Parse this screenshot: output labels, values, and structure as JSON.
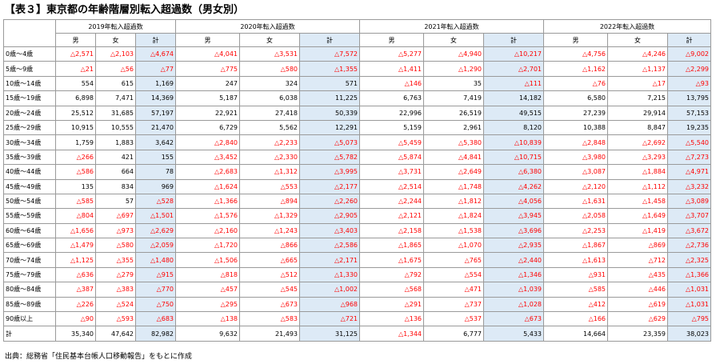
{
  "title": "【表３】東京都の年齢階層別転入超過数（男女別）",
  "years": [
    "2019年転入超過数",
    "2020年転入超過数",
    "2021年転入超過数",
    "2022年転入超過数"
  ],
  "sub_headers": [
    "男",
    "女",
    "計"
  ],
  "rows": [
    {
      "label": "0歳～4歳",
      "values": [
        "△2,571",
        "△2,103",
        "△4,674",
        "△4,041",
        "△3,531",
        "△7,572",
        "△5,277",
        "△4,940",
        "△10,217",
        "△4,756",
        "△4,246",
        "△9,002"
      ]
    },
    {
      "label": "5歳～9歳",
      "values": [
        "△21",
        "△56",
        "△77",
        "△775",
        "△580",
        "△1,355",
        "△1,411",
        "△1,290",
        "△2,701",
        "△1,162",
        "△1,137",
        "△2,299"
      ]
    },
    {
      "label": "10歳～14歳",
      "values": [
        "554",
        "615",
        "1,169",
        "247",
        "324",
        "571",
        "△146",
        "35",
        "△111",
        "△76",
        "△17",
        "△93"
      ]
    },
    {
      "label": "15歳～19歳",
      "values": [
        "6,898",
        "7,471",
        "14,369",
        "5,187",
        "6,038",
        "11,225",
        "6,763",
        "7,419",
        "14,182",
        "6,580",
        "7,215",
        "13,795"
      ]
    },
    {
      "label": "20歳～24歳",
      "values": [
        "25,512",
        "31,685",
        "57,197",
        "22,921",
        "27,418",
        "50,339",
        "22,996",
        "26,519",
        "49,515",
        "27,239",
        "29,914",
        "57,153"
      ]
    },
    {
      "label": "25歳～29歳",
      "values": [
        "10,915",
        "10,555",
        "21,470",
        "6,729",
        "5,562",
        "12,291",
        "5,159",
        "2,961",
        "8,120",
        "10,388",
        "8,847",
        "19,235"
      ]
    },
    {
      "label": "30歳～34歳",
      "values": [
        "1,759",
        "1,883",
        "3,642",
        "△2,840",
        "△2,233",
        "△5,073",
        "△5,459",
        "△5,380",
        "△10,839",
        "△2,848",
        "△2,692",
        "△5,540"
      ]
    },
    {
      "label": "35歳～39歳",
      "values": [
        "△266",
        "421",
        "155",
        "△3,452",
        "△2,330",
        "△5,782",
        "△5,874",
        "△4,841",
        "△10,715",
        "△3,980",
        "△3,293",
        "△7,273"
      ]
    },
    {
      "label": "40歳～44歳",
      "values": [
        "△586",
        "664",
        "78",
        "△2,683",
        "△1,312",
        "△3,995",
        "△3,731",
        "△2,649",
        "△6,380",
        "△3,087",
        "△1,884",
        "△4,971"
      ]
    },
    {
      "label": "45歳～49歳",
      "values": [
        "135",
        "834",
        "969",
        "△1,624",
        "△553",
        "△2,177",
        "△2,514",
        "△1,748",
        "△4,262",
        "△2,120",
        "△1,112",
        "△3,232"
      ]
    },
    {
      "label": "50歳～54歳",
      "values": [
        "△585",
        "57",
        "△528",
        "△1,366",
        "△894",
        "△2,260",
        "△2,244",
        "△1,812",
        "△4,056",
        "△1,631",
        "△1,458",
        "△3,089"
      ]
    },
    {
      "label": "55歳～59歳",
      "values": [
        "△804",
        "△697",
        "△1,501",
        "△1,576",
        "△1,329",
        "△2,905",
        "△2,121",
        "△1,824",
        "△3,945",
        "△2,058",
        "△1,649",
        "△3,707"
      ]
    },
    {
      "label": "60歳～64歳",
      "values": [
        "△1,656",
        "△973",
        "△2,629",
        "△2,160",
        "△1,243",
        "△3,403",
        "△2,158",
        "△1,538",
        "△3,696",
        "△2,253",
        "△1,419",
        "△3,672"
      ]
    },
    {
      "label": "65歳～69歳",
      "values": [
        "△1,479",
        "△580",
        "△2,059",
        "△1,720",
        "△866",
        "△2,586",
        "△1,865",
        "△1,070",
        "△2,935",
        "△1,867",
        "△869",
        "△2,736"
      ]
    },
    {
      "label": "70歳～74歳",
      "values": [
        "△1,125",
        "△355",
        "△1,480",
        "△1,506",
        "△665",
        "△2,171",
        "△1,675",
        "△765",
        "△2,440",
        "△1,613",
        "△712",
        "△2,325"
      ]
    },
    {
      "label": "75歳～79歳",
      "values": [
        "△636",
        "△279",
        "△915",
        "△818",
        "△512",
        "△1,330",
        "△792",
        "△554",
        "△1,346",
        "△931",
        "△435",
        "△1,366"
      ]
    },
    {
      "label": "80歳～84歳",
      "values": [
        "△387",
        "△383",
        "△770",
        "△457",
        "△545",
        "△1,002",
        "△568",
        "△471",
        "△1,039",
        "△585",
        "△446",
        "△1,031"
      ]
    },
    {
      "label": "85歳～89歳",
      "values": [
        "△226",
        "△524",
        "△750",
        "△295",
        "△673",
        "△968",
        "△291",
        "△737",
        "△1,028",
        "△412",
        "△619",
        "△1,031"
      ]
    },
    {
      "label": "90歳以上",
      "values": [
        "△90",
        "△593",
        "△683",
        "△138",
        "△583",
        "△721",
        "△136",
        "△537",
        "△673",
        "△166",
        "△629",
        "△795"
      ]
    },
    {
      "label": "計",
      "values": [
        "35,340",
        "47,642",
        "82,982",
        "9,632",
        "21,493",
        "31,125",
        "△1,344",
        "6,777",
        "5,433",
        "14,664",
        "23,359",
        "38,023"
      ]
    }
  ],
  "source": "出典：総務省「住民基本台帳人口移動報告」をもとに作成",
  "colors": {
    "negative": "#ff0000",
    "total_bg": "#ddeaf6",
    "border": "#9a9a9a"
  }
}
